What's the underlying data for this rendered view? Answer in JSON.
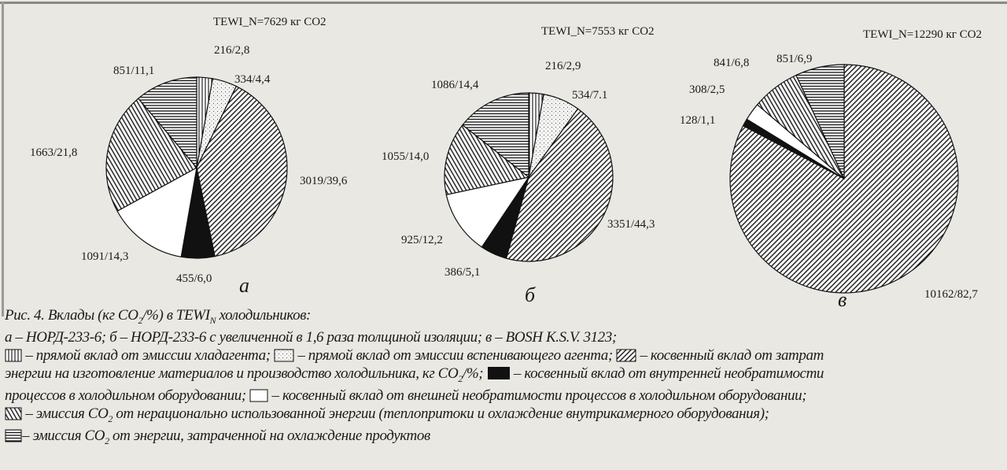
{
  "chart_data": [
    {
      "type": "pie",
      "panel": "а",
      "title": "TEWI_N=7629 кг CO2",
      "title_parts": {
        "pre": "TEWI",
        "sub": "N",
        "post": "=7629 кг CO",
        "sub2": "2"
      },
      "slices": [
        {
          "key": "refrigerant",
          "value": 216,
          "percent": 2.8,
          "label": "216/2,8"
        },
        {
          "key": "foam",
          "value": 334,
          "percent": 4.4,
          "label": "334/4,4"
        },
        {
          "key": "manufacturing",
          "value": 3019,
          "percent": 39.6,
          "label": "3019/39,6"
        },
        {
          "key": "internal",
          "value": 455,
          "percent": 6.0,
          "label": "455/6,0"
        },
        {
          "key": "external",
          "value": 1091,
          "percent": 14.3,
          "label": "1091/14,3"
        },
        {
          "key": "irrational",
          "value": 1663,
          "percent": 21.8,
          "label": "1663/21,8"
        },
        {
          "key": "products",
          "value": 851,
          "percent": 11.1,
          "label": "851/11,1"
        }
      ]
    },
    {
      "type": "pie",
      "panel": "б",
      "title": "TEWI_N=7553 кг CO2",
      "title_parts": {
        "pre": "TEWI",
        "sub": "N",
        "post": " =7553 кг CO",
        "sub2": "2"
      },
      "slices": [
        {
          "key": "refrigerant",
          "value": 216,
          "percent": 2.9,
          "label": "216/2,9"
        },
        {
          "key": "foam",
          "value": 534,
          "percent": 7.1,
          "label": "534/7.1"
        },
        {
          "key": "manufacturing",
          "value": 3351,
          "percent": 44.3,
          "label": "3351/44,3"
        },
        {
          "key": "internal",
          "value": 386,
          "percent": 5.1,
          "label": "386/5,1"
        },
        {
          "key": "external",
          "value": 925,
          "percent": 12.2,
          "label": "925/12,2"
        },
        {
          "key": "irrational",
          "value": 1055,
          "percent": 14.0,
          "label": "1055/14,0"
        },
        {
          "key": "products",
          "value": 1086,
          "percent": 14.4,
          "label": "1086/14,4"
        }
      ]
    },
    {
      "type": "pie",
      "panel": "в",
      "title": "TEWI_N=12290 кг CO2",
      "title_parts": {
        "pre": "TEWI",
        "sub": "N",
        "post": "=12290 кг CO",
        "sub2": "2"
      },
      "slices": [
        {
          "key": "manufacturing",
          "value": 10162,
          "percent": 82.7,
          "label": "10162/82,7"
        },
        {
          "key": "internal",
          "value": 128,
          "percent": 1.1,
          "label": "128/1,1"
        },
        {
          "key": "external",
          "value": 308,
          "percent": 2.5,
          "label": "308/2,5"
        },
        {
          "key": "irrational",
          "value": 841,
          "percent": 6.8,
          "label": "841/6,8"
        },
        {
          "key": "products",
          "value": 851,
          "percent": 6.9,
          "label": "851/6,9"
        }
      ]
    }
  ],
  "patterns": {
    "refrigerant": "vertical-lines",
    "foam": "dots",
    "manufacturing": "backslash-hatch",
    "internal": "solid-black",
    "external": "white",
    "irrational": "slash-hatch",
    "products": "horizontal-lines"
  },
  "caption": {
    "line1": {
      "a": "Рис. 4. Вклады (кг CO",
      "sub": "2",
      "b": "/%) в TEWI",
      "sub2": "N",
      "c": " холодильников:"
    },
    "line2": "а – НОРД-233-6; б – НОРД-233-6 с увеличенной в 1,6 раза толщиной изоляции; в – BOSH K.S.V. 3123;",
    "legend_refrigerant": " – прямой вклад от эмиссии хладагента; ",
    "legend_foam": " – прямой вклад от эмиссии вспенивающего агента; ",
    "legend_manufacturing_a": " – косвенный вклад от затрат",
    "legend_manufacturing_b": "энергии на изготовление материалов и производство холодильника, кг CO",
    "legend_manufacturing_sub": "2",
    "legend_manufacturing_c": "/%; ",
    "legend_internal_a": " – косвенный вклад от внутренней необратимости",
    "legend_internal_b": "процессов в холодильном оборудовании; ",
    "legend_external": " – косвенный вклад от внешней необратимости процессов в холодильном оборудовании;",
    "legend_irrational_a": " – эмиссия CO",
    "legend_irrational_sub": "2",
    "legend_irrational_b": " от нерационально использованной энергии (теплопритоки и охлаждение внутрикамерного оборудования);",
    "legend_products_a": "– эмиссия CO",
    "legend_products_sub": "2",
    "legend_products_b": " от энергии, затраченной на охлаждение продуктов"
  }
}
